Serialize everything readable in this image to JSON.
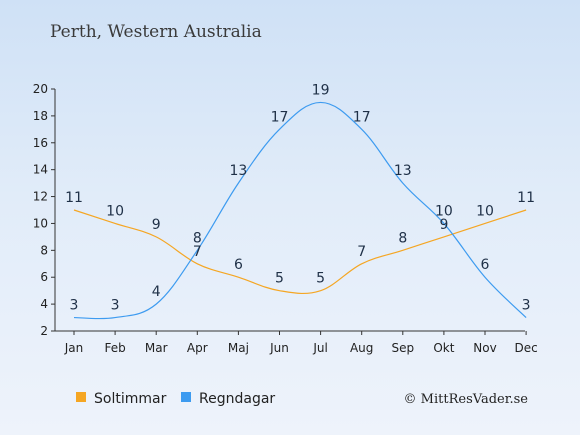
{
  "title": "Perth, Western Australia",
  "copyright": "© MittResVader.se",
  "colors": {
    "soltimmar": "#f5a623",
    "regndagar": "#3d9bf0",
    "axis": "#333333"
  },
  "chart_data": {
    "type": "line",
    "title": "Perth, Western Australia",
    "xlabel": "",
    "ylabel": "",
    "categories": [
      "Jan",
      "Feb",
      "Mar",
      "Apr",
      "Maj",
      "Jun",
      "Jul",
      "Aug",
      "Sep",
      "Okt",
      "Nov",
      "Dec"
    ],
    "yticks": [
      "2",
      "4",
      "6",
      "8",
      "10",
      "12",
      "14",
      "16",
      "18",
      "20"
    ],
    "ylim": [
      2,
      20
    ],
    "grid": false,
    "legend_position": "bottom-left",
    "series": [
      {
        "name": "Soltimmar",
        "values": [
          11,
          10,
          9,
          7,
          6,
          5,
          5,
          7,
          8,
          9,
          10,
          11
        ],
        "labels": [
          "11",
          "10",
          "9",
          "7",
          "6",
          "5",
          "5",
          "7",
          "8",
          "9",
          "10",
          "11"
        ]
      },
      {
        "name": "Regndagar",
        "values": [
          3,
          3,
          4,
          8,
          13,
          17,
          19,
          17,
          13,
          10,
          6,
          3
        ],
        "labels": [
          "3",
          "3",
          "4",
          "8",
          "13",
          "17",
          "19",
          "17",
          "13",
          "10",
          "6",
          "3"
        ]
      }
    ]
  }
}
